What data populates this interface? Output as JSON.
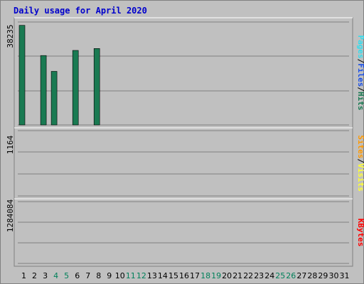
{
  "chart_data": {
    "type": "bar",
    "title": "Daily usage for April 2020",
    "categories": [
      "1",
      "2",
      "3",
      "4",
      "5",
      "6",
      "7",
      "8",
      "9",
      "10",
      "11",
      "12",
      "13",
      "14",
      "15",
      "16",
      "17",
      "18",
      "19",
      "20",
      "21",
      "22",
      "23",
      "24",
      "25",
      "26",
      "27",
      "28",
      "29",
      "30",
      "31"
    ],
    "weekend_days": [
      "4",
      "5",
      "11",
      "12",
      "18",
      "19",
      "25",
      "26"
    ],
    "panels": [
      {
        "id": "hits",
        "ylabel_parts": [
          "Pages",
          "/",
          "Files",
          "/",
          "Hits"
        ],
        "max_label": "38235",
        "ylim": [
          0,
          38235
        ],
        "series": [
          {
            "name": "Hits",
            "color": "#1a7a52",
            "values": [
              37000,
              0,
              25800,
              19900,
              0,
              27700,
              0,
              28400,
              0,
              0,
              0,
              0,
              0,
              0,
              0,
              0,
              0,
              0,
              0,
              0,
              0,
              0,
              0,
              0,
              0,
              0,
              0,
              0,
              0,
              0,
              0
            ]
          },
          {
            "name": "Files",
            "color": "#1a50e8",
            "values": [
              0
            ]
          },
          {
            "name": "Pages",
            "color": "#33ddee",
            "values": [
              0
            ]
          }
        ]
      },
      {
        "id": "visits",
        "ylabel_parts": [
          "Sites",
          "/",
          "Visits"
        ],
        "max_label": "1164",
        "ylim": [
          0,
          1164
        ],
        "series": [
          {
            "name": "Visits",
            "color": "#ffff33",
            "values": [
              0
            ]
          },
          {
            "name": "Sites",
            "color": "#ff9900",
            "values": [
              0
            ]
          }
        ]
      },
      {
        "id": "kbytes",
        "ylabel_parts": [
          "KBytes"
        ],
        "max_label": "1284084",
        "ylim": [
          0,
          1284084
        ],
        "series": [
          {
            "name": "KBytes",
            "color": "#ff0000",
            "values": [
              0
            ]
          }
        ]
      }
    ]
  }
}
